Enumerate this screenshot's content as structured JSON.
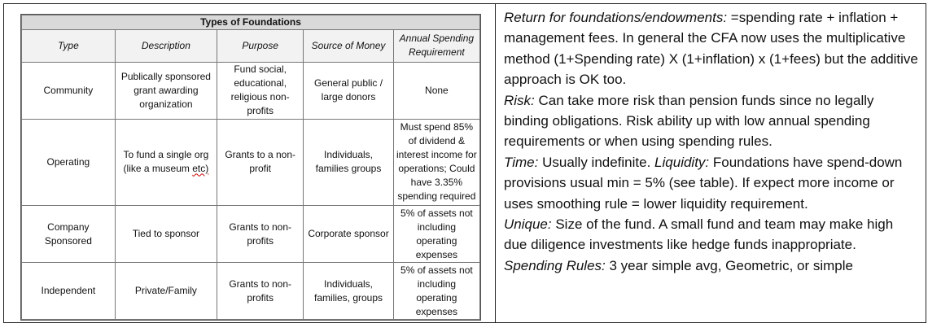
{
  "table": {
    "title": "Types of Foundations",
    "headers": [
      "Type",
      "Description",
      "Purpose",
      "Source of Money",
      "Annual Spending Requirement"
    ],
    "rows": [
      {
        "type": "Community",
        "description": "Publically sponsored grant awarding organization",
        "purpose": "Fund social, educational, religious non-profits",
        "source": "General public / large donors",
        "requirement": "None"
      },
      {
        "type": "Operating",
        "description_main": "To fund a single org (like a museum",
        "description_etc": "etc)",
        "purpose": "Grants to a non-profit",
        "source": "Individuals, families groups",
        "requirement": "Must spend 85% of dividend & interest income for operations; Could have 3.35% spending required"
      },
      {
        "type": "Company Sponsored",
        "description": "Tied to sponsor",
        "purpose": "Grants to non-profits",
        "source": "Corporate sponsor",
        "requirement": "5% of assets not including operating expenses"
      },
      {
        "type": "Independent",
        "description": "Private/Family",
        "purpose": "Grants to non-profits",
        "source": "Individuals, families, groups",
        "requirement": "5% of assets not including operating expenses"
      }
    ]
  },
  "notes": {
    "return_label": "Return for foundations/endowments:",
    "return_text": " =spending rate + inflation + management fees. In general the CFA now uses the multiplicative method (1+Spending rate) X (1+inflation) x (1+fees) but the additive approach is OK too.",
    "risk_label": "Risk:",
    "risk_text": " Can take more risk than pension funds since no legally binding obligations. Risk ability up with low annual spending requirements or when using spending rules.",
    "time_label": "Time:",
    "time_text": " Usually indefinite. ",
    "liquidity_label": "Liquidity:",
    "liquidity_text": " Foundations have spend-down provisions usual min = 5% (see table). If expect more income or uses smoothing rule = lower liquidity requirement.",
    "unique_label": "Unique:",
    "unique_text": " Size of the fund. A small fund and team may make high due diligence investments like hedge funds inappropriate.",
    "spending_label": "Spending Rules:",
    "spending_text": " 3 year simple avg, Geometric, or simple"
  }
}
